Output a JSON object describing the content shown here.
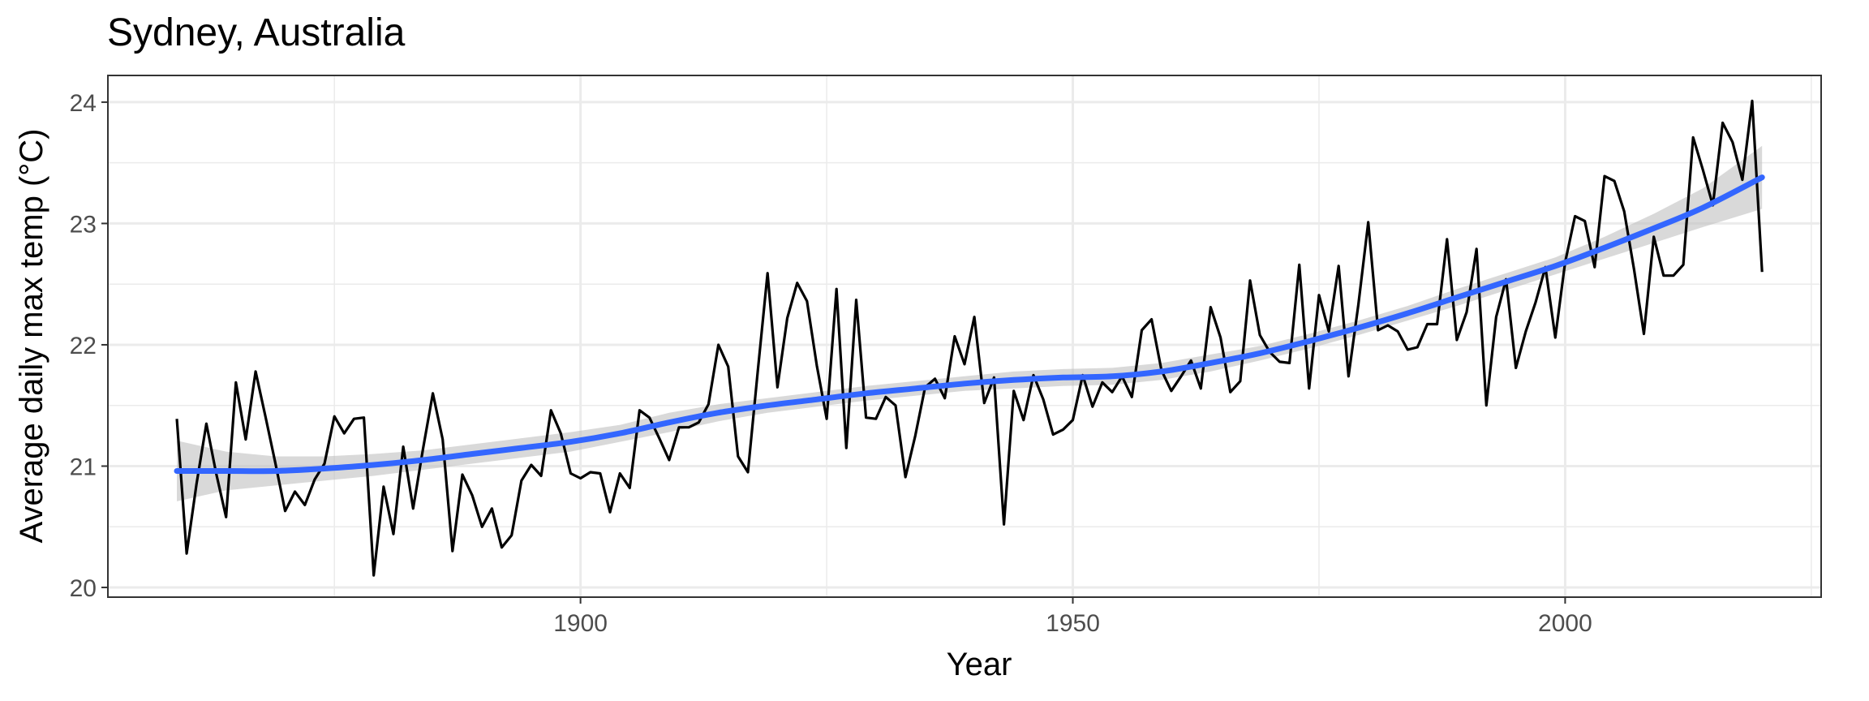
{
  "chart_data": {
    "type": "line",
    "title": "Sydney, Australia",
    "xlabel": "Year",
    "ylabel": "Average daily max temp (°C)",
    "xlim": [
      1852,
      2026
    ],
    "ylim": [
      19.92,
      24.22
    ],
    "x_ticks": [
      1900,
      1950,
      2000
    ],
    "y_ticks": [
      20,
      21,
      22,
      23,
      24
    ],
    "x_minor_ticks": [
      1875,
      1925,
      1975,
      2025
    ],
    "y_minor_ticks": [
      20.5,
      21.5,
      22.5,
      23.5
    ],
    "grid": true,
    "legend": "none",
    "colors": {
      "series": "#000000",
      "smooth": "#3366ff",
      "ribbon": "#bfbfbf",
      "grid": "#ebebeb",
      "panel_border": "#333333"
    },
    "x": [
      1859,
      1860,
      1861,
      1862,
      1863,
      1864,
      1865,
      1866,
      1867,
      1868,
      1869,
      1870,
      1871,
      1872,
      1873,
      1874,
      1875,
      1876,
      1877,
      1878,
      1879,
      1880,
      1881,
      1882,
      1883,
      1884,
      1885,
      1886,
      1887,
      1888,
      1889,
      1890,
      1891,
      1892,
      1893,
      1894,
      1895,
      1896,
      1897,
      1898,
      1899,
      1900,
      1901,
      1902,
      1903,
      1904,
      1905,
      1906,
      1907,
      1908,
      1909,
      1910,
      1911,
      1912,
      1913,
      1914,
      1915,
      1916,
      1917,
      1918,
      1919,
      1920,
      1921,
      1922,
      1923,
      1924,
      1925,
      1926,
      1927,
      1928,
      1929,
      1930,
      1931,
      1932,
      1933,
      1934,
      1935,
      1936,
      1937,
      1938,
      1939,
      1940,
      1941,
      1942,
      1943,
      1944,
      1945,
      1946,
      1947,
      1948,
      1949,
      1950,
      1951,
      1952,
      1953,
      1954,
      1955,
      1956,
      1957,
      1958,
      1959,
      1960,
      1961,
      1962,
      1963,
      1964,
      1965,
      1966,
      1967,
      1968,
      1969,
      1970,
      1971,
      1972,
      1973,
      1974,
      1975,
      1976,
      1977,
      1978,
      1979,
      1980,
      1981,
      1982,
      1983,
      1984,
      1985,
      1986,
      1987,
      1988,
      1989,
      1990,
      1991,
      1992,
      1993,
      1994,
      1995,
      1996,
      1997,
      1998,
      1999,
      2000,
      2001,
      2002,
      2003,
      2004,
      2005,
      2006,
      2007,
      2008,
      2009,
      2010,
      2011,
      2012,
      2013,
      2014,
      2015,
      2016,
      2017,
      2018,
      2019,
      2020
    ],
    "series": [
      {
        "values": [
          21.39,
          20.28,
          20.85,
          21.35,
          20.94,
          20.58,
          21.69,
          21.22,
          21.78,
          21.41,
          21.03,
          20.63,
          20.79,
          20.68,
          20.89,
          21.02,
          21.41,
          21.27,
          21.39,
          21.4,
          20.1,
          20.83,
          20.44,
          21.16,
          20.65,
          21.14,
          21.6,
          21.22,
          20.3,
          20.93,
          20.76,
          20.5,
          20.65,
          20.33,
          20.43,
          20.88,
          21.01,
          20.92,
          21.46,
          21.27,
          20.94,
          20.9,
          20.95,
          20.94,
          20.62,
          20.94,
          20.82,
          21.46,
          21.4,
          21.23,
          21.05,
          21.32,
          21.32,
          21.36,
          21.51,
          22.0,
          21.82,
          21.08,
          20.95,
          21.78,
          22.59,
          21.65,
          22.22,
          22.51,
          22.36,
          21.83,
          21.39,
          22.46,
          21.15,
          22.37,
          21.4,
          21.39,
          21.57,
          21.5,
          20.91,
          21.25,
          21.65,
          21.72,
          21.56,
          22.07,
          21.84,
          22.23,
          21.52,
          21.73,
          20.52,
          21.62,
          21.38,
          21.75,
          21.55,
          21.26,
          21.3,
          21.38,
          21.75,
          21.49,
          21.69,
          21.61,
          21.74,
          21.57,
          22.12,
          22.21,
          21.79,
          21.62,
          21.74,
          21.87,
          21.64,
          22.31,
          22.06,
          21.61,
          21.7,
          22.53,
          22.08,
          21.94,
          21.86,
          21.85,
          22.66,
          21.64,
          22.41,
          22.11,
          22.65,
          21.74,
          22.33,
          23.01,
          22.12,
          22.16,
          22.11,
          21.96,
          21.98,
          22.17,
          22.17,
          22.87,
          22.04,
          22.27,
          22.79,
          21.5,
          22.23,
          22.54,
          21.81,
          22.11,
          22.35,
          22.64,
          22.06,
          22.68,
          23.06,
          23.02,
          22.64,
          23.39,
          23.35,
          23.1,
          22.62,
          22.09,
          22.89,
          22.57,
          22.57,
          22.66,
          23.71,
          23.44,
          23.15,
          23.83,
          23.67,
          23.36,
          24.01,
          22.6
        ]
      }
    ],
    "smooth": {
      "x": [
        1859,
        1864,
        1869,
        1874,
        1879,
        1884,
        1889,
        1894,
        1899,
        1904,
        1909,
        1914,
        1919,
        1924,
        1929,
        1934,
        1939,
        1944,
        1949,
        1954,
        1959,
        1964,
        1969,
        1974,
        1979,
        1984,
        1989,
        1994,
        1999,
        2004,
        2009,
        2014,
        2020
      ],
      "y": [
        20.96,
        20.96,
        20.96,
        20.98,
        21.01,
        21.05,
        21.1,
        21.15,
        21.2,
        21.27,
        21.36,
        21.44,
        21.5,
        21.55,
        21.6,
        21.64,
        21.68,
        21.71,
        21.73,
        21.74,
        21.78,
        21.85,
        21.93,
        22.03,
        22.14,
        22.26,
        22.39,
        22.52,
        22.65,
        22.8,
        22.96,
        23.13,
        23.38
      ],
      "lower": [
        20.71,
        20.8,
        20.84,
        20.88,
        20.92,
        20.97,
        21.02,
        21.07,
        21.12,
        21.2,
        21.28,
        21.37,
        21.44,
        21.49,
        21.54,
        21.58,
        21.62,
        21.64,
        21.66,
        21.67,
        21.71,
        21.78,
        21.87,
        21.97,
        22.08,
        22.2,
        22.32,
        22.45,
        22.58,
        22.71,
        22.84,
        22.97,
        23.12
      ],
      "upper": [
        21.21,
        21.12,
        21.08,
        21.08,
        21.1,
        21.13,
        21.18,
        21.23,
        21.28,
        21.34,
        21.44,
        21.51,
        21.56,
        21.61,
        21.66,
        21.7,
        21.74,
        21.78,
        21.8,
        21.81,
        21.85,
        21.92,
        21.99,
        22.09,
        22.2,
        22.32,
        22.46,
        22.59,
        22.72,
        22.89,
        23.08,
        23.29,
        23.64
      ]
    }
  }
}
